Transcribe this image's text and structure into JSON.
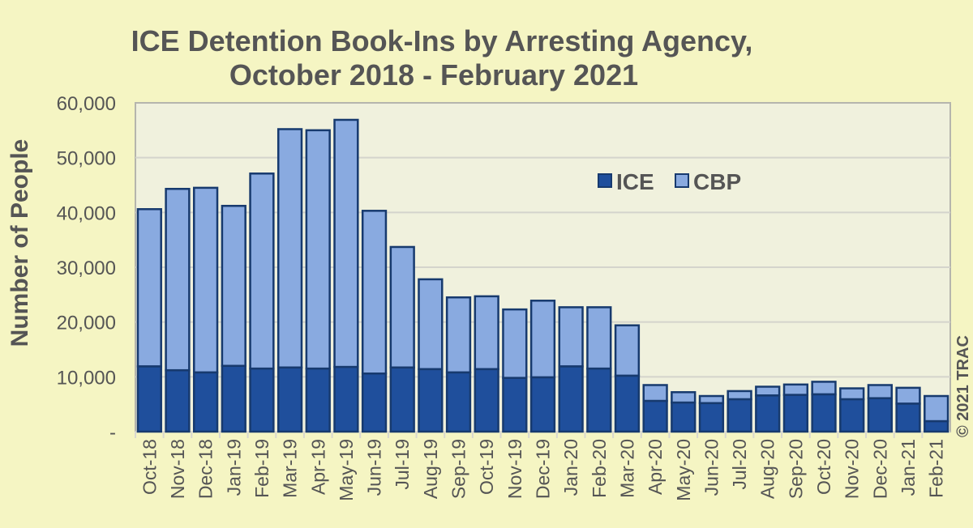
{
  "chart_data": {
    "type": "bar",
    "stacked": true,
    "title": "ICE Detention Book-Ins by Arresting Agency,",
    "subtitle": "October 2018 - February 2021",
    "xlabel": "",
    "ylabel": "Number of People",
    "ylim": [
      0,
      60000
    ],
    "yticks": [
      0,
      10000,
      20000,
      30000,
      40000,
      50000,
      60000
    ],
    "ytick_labels": [
      "-",
      "10,000",
      "20,000",
      "30,000",
      "40,000",
      "50,000",
      "60,000"
    ],
    "grid": true,
    "legend_position": "top-right",
    "categories": [
      "Oct-18",
      "Nov-18",
      "Dec-18",
      "Jan-19",
      "Feb-19",
      "Mar-19",
      "Apr-19",
      "May-19",
      "Jun-19",
      "Jul-19",
      "Aug-19",
      "Sep-19",
      "Oct-19",
      "Nov-19",
      "Dec-19",
      "Jan-20",
      "Feb-20",
      "Mar-20",
      "Apr-20",
      "May-20",
      "Jun-20",
      "Jul-20",
      "Aug-20",
      "Sep-20",
      "Oct-20",
      "Nov-20",
      "Dec-20",
      "Jan-21",
      "Feb-21"
    ],
    "series": [
      {
        "name": "ICE",
        "color": "#1f4f9c",
        "values": [
          11900,
          11200,
          10800,
          12000,
          11500,
          11700,
          11500,
          11800,
          10600,
          11700,
          11400,
          10800,
          11400,
          9800,
          9900,
          11900,
          11500,
          10200,
          5600,
          5300,
          5200,
          5900,
          6600,
          6700,
          6800,
          5900,
          6100,
          5100,
          1900
        ]
      },
      {
        "name": "CBP",
        "color": "#89aae0",
        "values": [
          28700,
          33100,
          33700,
          29200,
          35600,
          43500,
          43500,
          45100,
          29700,
          22000,
          16400,
          13700,
          13300,
          12500,
          14000,
          10800,
          11200,
          9200,
          2900,
          1900,
          1300,
          1500,
          1600,
          1900,
          2300,
          2000,
          2400,
          2900,
          4600
        ]
      }
    ],
    "totals": [
      40600,
      44300,
      44500,
      41200,
      47100,
      55200,
      55000,
      56900,
      40300,
      33700,
      27800,
      24500,
      24700,
      22300,
      23900,
      22700,
      22700,
      19400,
      8500,
      7200,
      6500,
      7400,
      8200,
      8600,
      9100,
      7900,
      8500,
      8000,
      6500
    ],
    "annotation": "© 2021 TRAC"
  },
  "colors": {
    "ice": "#1f4f9c",
    "cbp": "#89aae0",
    "bar_border": "#173a6e",
    "plot_background": "#f0f1dd",
    "page_background": "#f5f5c3",
    "gridline": "#d4d4cc",
    "text": "#555555"
  }
}
